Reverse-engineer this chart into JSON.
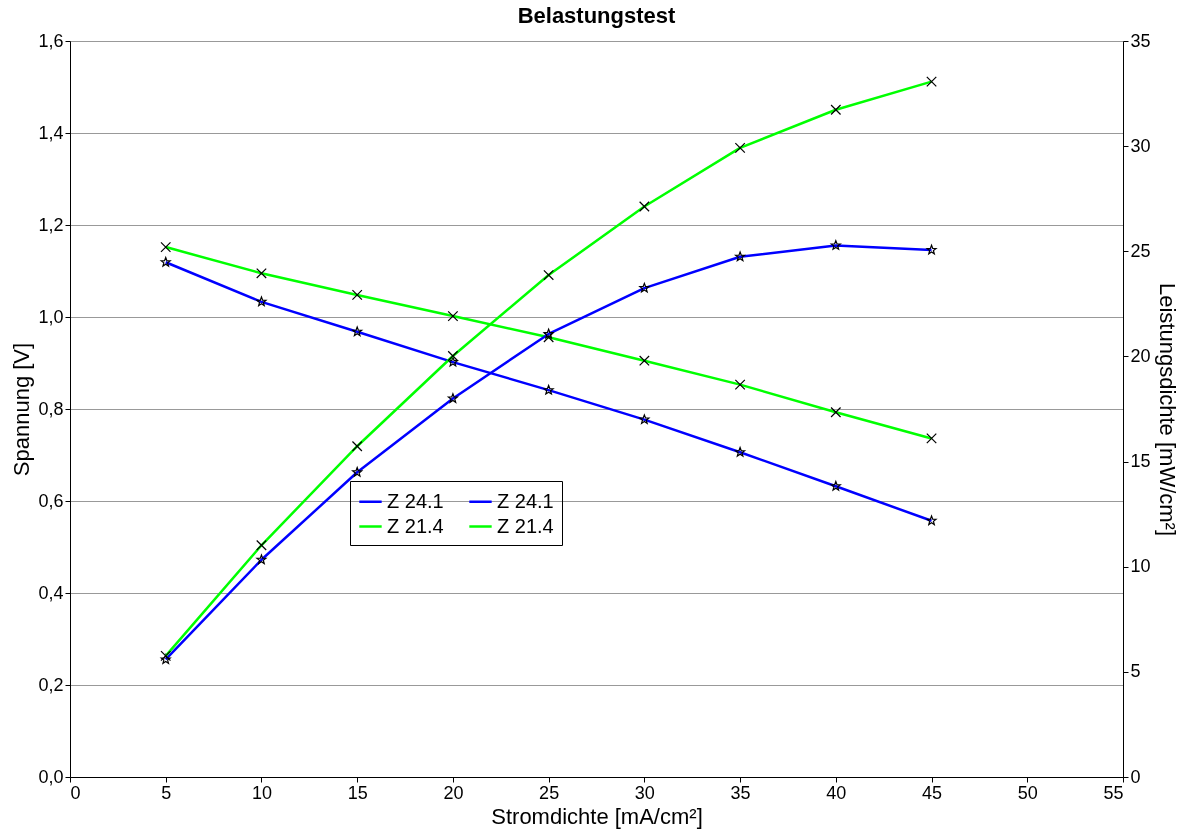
{
  "chart_data": {
    "type": "line",
    "title": "Belastungstest",
    "xlabel": "Stromdichte [mA/cm²]",
    "ylabel": "Spannung [V]",
    "y2label": "Leistungsdichte [mW/cm²]",
    "x": [
      5,
      10,
      15,
      20,
      25,
      30,
      35,
      40,
      45
    ],
    "series": [
      {
        "name": "Z 24.1",
        "color": "#0000ff",
        "marker": "star",
        "values": [
          1.119,
          1.033,
          0.968,
          0.902,
          0.841,
          0.777,
          0.706,
          0.632,
          0.557
        ]
      },
      {
        "name": "Z 24.1",
        "color": "#0000ff",
        "marker": "star",
        "axis": "y2",
        "values": [
          5.59,
          10.33,
          14.49,
          18.0,
          21.07,
          23.25,
          24.74,
          25.28,
          25.06
        ]
      },
      {
        "name": "Z 21.4",
        "color": "#00ff00",
        "marker": "cross",
        "values": [
          1.152,
          1.095,
          1.048,
          1.002,
          0.956,
          0.905,
          0.853,
          0.793,
          0.736
        ]
      },
      {
        "name": "Z 21.4",
        "color": "#00ff00",
        "marker": "cross",
        "axis": "y2",
        "values": [
          5.76,
          11.02,
          15.73,
          20.02,
          23.87,
          27.13,
          29.92,
          31.73,
          33.07
        ]
      }
    ],
    "xlim": [
      0,
      55
    ],
    "xticks": [
      0,
      5,
      10,
      15,
      20,
      25,
      30,
      35,
      40,
      45,
      50,
      55
    ],
    "ylim": [
      0,
      1.6
    ],
    "yticks": [
      {
        "value": 0,
        "label": "0,0"
      },
      {
        "value": 0.2,
        "label": "0,2"
      },
      {
        "value": 0.4,
        "label": "0,4"
      },
      {
        "value": 0.6,
        "label": "0,6"
      },
      {
        "value": 0.8,
        "label": "0,8"
      },
      {
        "value": 1.0,
        "label": "1,0"
      },
      {
        "value": 1.2,
        "label": "1,2"
      },
      {
        "value": 1.4,
        "label": "1,4"
      },
      {
        "value": 1.6,
        "label": "1,6"
      }
    ],
    "y2lim": [
      0,
      35
    ],
    "y2ticks": [
      0,
      5,
      10,
      15,
      20,
      25,
      30,
      35
    ],
    "grid": "y",
    "legend": "center",
    "line_style": "solid"
  }
}
